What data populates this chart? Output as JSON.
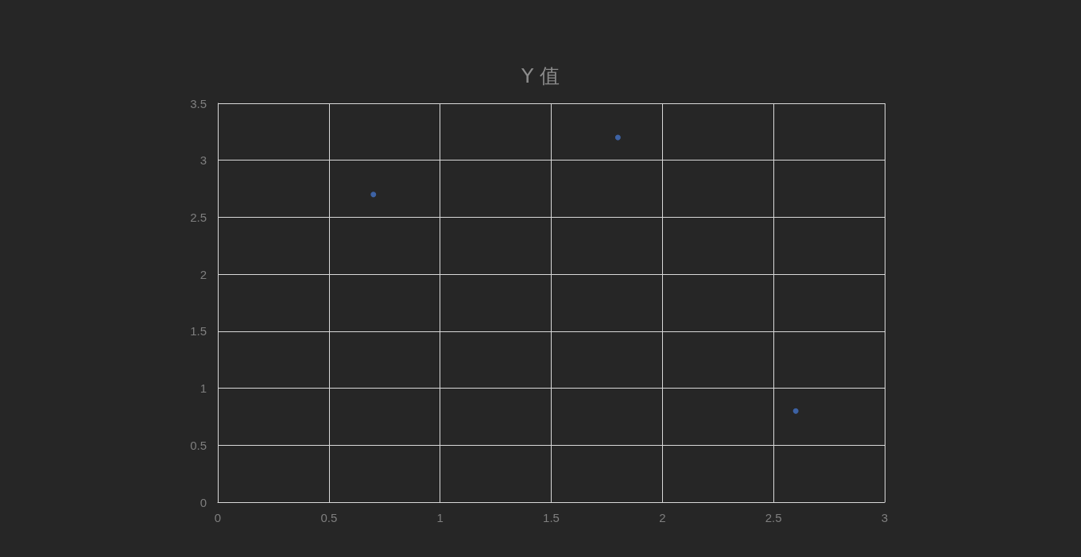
{
  "chart_data": {
    "type": "scatter",
    "title": "Y 值",
    "x": [
      0.7,
      1.8,
      2.6
    ],
    "series": [
      {
        "color": "#4472c4",
        "values": [
          2.7,
          3.2,
          0.8
        ]
      }
    ],
    "xlim": [
      0,
      3
    ],
    "xticks": [
      0,
      0.5,
      1,
      1.5,
      2,
      2.5,
      3
    ],
    "ylim": [
      0,
      3.5
    ],
    "yticks": [
      0,
      0.5,
      1,
      1.5,
      2,
      2.5,
      3,
      3.5
    ],
    "grid": true,
    "marker": "circle"
  }
}
